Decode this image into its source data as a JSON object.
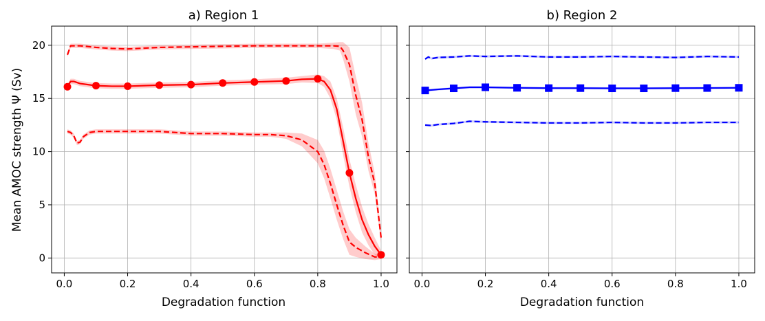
{
  "figure": {
    "ylabel": "Mean AMOC strength Ψ (Sv)",
    "shared_y": true
  },
  "chart_data": [
    {
      "type": "line",
      "title": "a) Region 1",
      "xlabel": "Degradation function",
      "ylabel": "Mean AMOC strength Ψ (Sv)",
      "xlim": [
        -0.04,
        1.05
      ],
      "ylim": [
        -1.4,
        21.8
      ],
      "xticks": [
        0.0,
        0.2,
        0.4,
        0.6,
        0.8,
        1.0
      ],
      "xtick_labels": [
        "0.0",
        "0.2",
        "0.4",
        "0.6",
        "0.8",
        "1.0"
      ],
      "yticks": [
        0,
        5,
        10,
        15,
        20
      ],
      "ytick_labels": [
        "0",
        "5",
        "10",
        "15",
        "20"
      ],
      "grid": true,
      "color": "#ff0000",
      "series": [
        {
          "role": "mean",
          "style": "solid",
          "marker": "circle",
          "x": [
            0.01,
            0.02,
            0.03,
            0.05,
            0.1,
            0.15,
            0.2,
            0.25,
            0.3,
            0.4,
            0.5,
            0.6,
            0.7,
            0.75,
            0.8,
            0.82,
            0.84,
            0.86,
            0.88,
            0.9,
            0.92,
            0.94,
            0.96,
            0.98,
            1.0
          ],
          "y": [
            16.1,
            16.6,
            16.6,
            16.4,
            16.2,
            16.15,
            16.15,
            16.2,
            16.25,
            16.3,
            16.45,
            16.55,
            16.65,
            16.8,
            16.85,
            16.6,
            15.8,
            14.0,
            11.0,
            8.0,
            5.6,
            3.6,
            2.2,
            1.1,
            0.3
          ],
          "band": [
            0.25,
            0.25,
            0.25,
            0.25,
            0.25,
            0.25,
            0.25,
            0.25,
            0.25,
            0.25,
            0.25,
            0.25,
            0.3,
            0.3,
            0.4,
            0.5,
            0.8,
            1.0,
            1.3,
            1.3,
            1.3,
            1.2,
            1.0,
            0.8,
            0.4
          ],
          "marker_x": [
            0.01,
            0.1,
            0.2,
            0.3,
            0.4,
            0.5,
            0.6,
            0.7,
            0.8,
            0.9,
            1.0
          ],
          "marker_y": [
            16.1,
            16.2,
            16.15,
            16.25,
            16.3,
            16.45,
            16.55,
            16.65,
            16.85,
            8.0,
            0.3
          ]
        },
        {
          "role": "upper",
          "style": "dashed",
          "x": [
            0.01,
            0.02,
            0.05,
            0.1,
            0.15,
            0.2,
            0.3,
            0.4,
            0.5,
            0.6,
            0.7,
            0.8,
            0.85,
            0.87,
            0.88,
            0.9,
            0.92,
            0.94,
            0.96,
            0.98,
            1.0
          ],
          "y": [
            19.1,
            19.95,
            19.95,
            19.8,
            19.7,
            19.65,
            19.8,
            19.85,
            19.9,
            19.95,
            19.95,
            19.95,
            19.95,
            19.9,
            19.5,
            18.2,
            15.3,
            13.0,
            9.5,
            7.0,
            1.9
          ],
          "band": [
            0.2,
            0.2,
            0.2,
            0.2,
            0.2,
            0.2,
            0.2,
            0.2,
            0.2,
            0.2,
            0.2,
            0.2,
            0.3,
            0.4,
            0.8,
            1.6,
            1.8,
            1.6,
            1.3,
            1.0,
            0.5
          ]
        },
        {
          "role": "lower",
          "style": "dashed",
          "x": [
            0.01,
            0.02,
            0.03,
            0.04,
            0.05,
            0.06,
            0.08,
            0.1,
            0.15,
            0.2,
            0.3,
            0.4,
            0.5,
            0.6,
            0.65,
            0.7,
            0.75,
            0.8,
            0.82,
            0.84,
            0.86,
            0.88,
            0.9,
            0.92,
            0.95,
            0.98,
            1.0
          ],
          "y": [
            11.9,
            11.8,
            11.5,
            10.8,
            10.9,
            11.4,
            11.8,
            11.9,
            11.9,
            11.9,
            11.9,
            11.7,
            11.7,
            11.6,
            11.6,
            11.5,
            11.1,
            10.0,
            8.8,
            7.0,
            5.0,
            3.1,
            1.5,
            1.0,
            0.5,
            0.1,
            0.1
          ],
          "band": [
            0.2,
            0.2,
            0.2,
            0.2,
            0.2,
            0.2,
            0.2,
            0.2,
            0.2,
            0.2,
            0.2,
            0.2,
            0.2,
            0.2,
            0.2,
            0.3,
            0.6,
            1.1,
            1.3,
            1.4,
            1.4,
            1.3,
            1.2,
            0.9,
            0.6,
            0.3,
            0.2
          ]
        }
      ]
    },
    {
      "type": "line",
      "title": "b) Region 2",
      "xlabel": "Degradation function",
      "xlim": [
        -0.04,
        1.05
      ],
      "ylim": [
        -1.4,
        21.8
      ],
      "xticks": [
        0.0,
        0.2,
        0.4,
        0.6,
        0.8,
        1.0
      ],
      "xtick_labels": [
        "0.0",
        "0.2",
        "0.4",
        "0.6",
        "0.8",
        "1.0"
      ],
      "yticks": [
        0,
        5,
        10,
        15,
        20
      ],
      "grid": true,
      "color": "#0000ff",
      "series": [
        {
          "role": "mean",
          "style": "solid",
          "marker": "square",
          "x": [
            0.01,
            0.05,
            0.1,
            0.15,
            0.2,
            0.3,
            0.4,
            0.5,
            0.6,
            0.7,
            0.8,
            0.9,
            1.0
          ],
          "y": [
            15.75,
            15.85,
            15.95,
            16.05,
            16.05,
            16.0,
            15.97,
            15.97,
            15.95,
            15.95,
            15.97,
            15.98,
            16.0
          ],
          "band": [
            0.1,
            0.1,
            0.1,
            0.1,
            0.1,
            0.1,
            0.1,
            0.1,
            0.1,
            0.1,
            0.1,
            0.1,
            0.1
          ],
          "marker_x": [
            0.01,
            0.1,
            0.2,
            0.3,
            0.4,
            0.5,
            0.6,
            0.7,
            0.8,
            0.9,
            1.0
          ],
          "marker_y": [
            15.75,
            15.95,
            16.05,
            16.0,
            15.97,
            15.97,
            15.95,
            15.95,
            15.97,
            15.98,
            16.0
          ]
        },
        {
          "role": "upper",
          "style": "dashed",
          "x": [
            0.01,
            0.02,
            0.03,
            0.05,
            0.1,
            0.15,
            0.2,
            0.3,
            0.4,
            0.5,
            0.6,
            0.7,
            0.8,
            0.9,
            1.0
          ],
          "y": [
            18.7,
            18.9,
            18.75,
            18.85,
            18.9,
            19.0,
            18.95,
            19.0,
            18.9,
            18.9,
            18.95,
            18.9,
            18.85,
            18.95,
            18.9
          ],
          "band": [
            0.1,
            0.1,
            0.1,
            0.1,
            0.1,
            0.1,
            0.1,
            0.1,
            0.1,
            0.1,
            0.1,
            0.1,
            0.1,
            0.1,
            0.1
          ]
        },
        {
          "role": "lower",
          "style": "dashed",
          "x": [
            0.01,
            0.03,
            0.05,
            0.1,
            0.15,
            0.2,
            0.3,
            0.4,
            0.5,
            0.6,
            0.7,
            0.8,
            0.9,
            1.0
          ],
          "y": [
            12.5,
            12.45,
            12.55,
            12.65,
            12.85,
            12.8,
            12.75,
            12.7,
            12.7,
            12.75,
            12.7,
            12.7,
            12.75,
            12.75
          ],
          "band": [
            0.1,
            0.1,
            0.1,
            0.1,
            0.1,
            0.1,
            0.1,
            0.1,
            0.1,
            0.1,
            0.1,
            0.1,
            0.1,
            0.1
          ]
        }
      ]
    }
  ]
}
